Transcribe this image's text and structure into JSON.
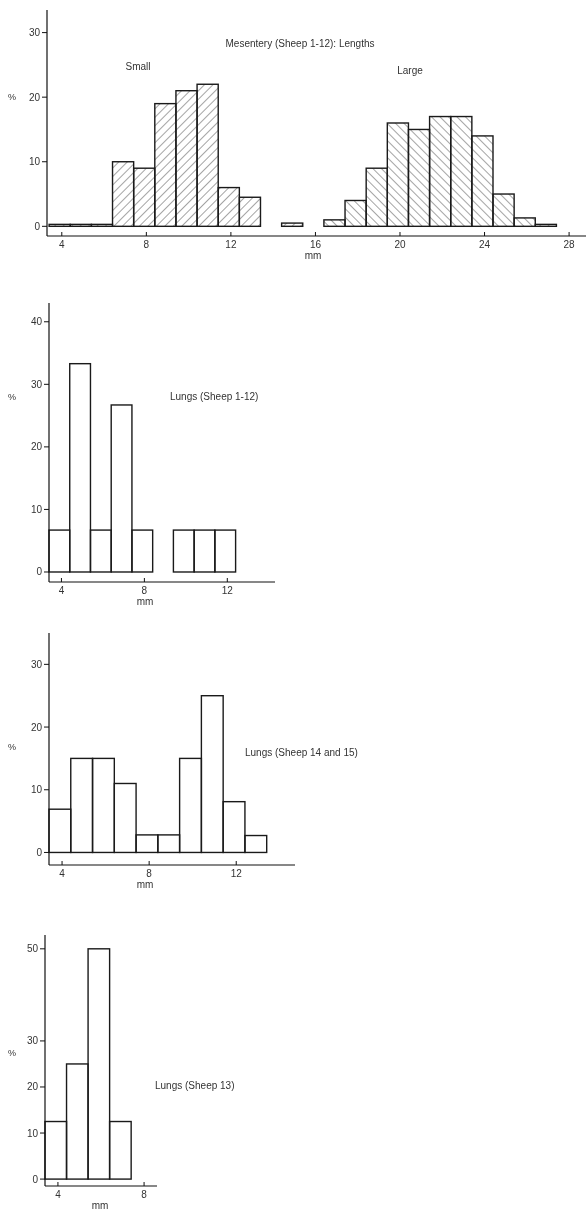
{
  "chart_data": [
    {
      "type": "histogram",
      "title": "Mesentery (Sheep 1-12): Lengths",
      "xlabel": "mm",
      "ylabel": "%",
      "bins": [
        3.4,
        4.4,
        5.4,
        6.4,
        7.4,
        8.4,
        9.4,
        10.4,
        11.4,
        12.4,
        13.4,
        14.4,
        15.4,
        16.4,
        17.4,
        18.4,
        19.4,
        20.4,
        21.4,
        22.4,
        23.4,
        24.4,
        25.4,
        26.4,
        27.4
      ],
      "series": [
        {
          "color": "#1a1a1a",
          "values": [
            0.3,
            0.3,
            0.3,
            10,
            9,
            19,
            21,
            22,
            6,
            4.5,
            0,
            0.5,
            null,
            null,
            null,
            null,
            null,
            null,
            null,
            null,
            null,
            null,
            null,
            null
          ]
        },
        {
          "color": "#1a1a1a",
          "values": [
            null,
            null,
            null,
            null,
            null,
            null,
            null,
            null,
            null,
            null,
            null,
            null,
            null,
            1,
            4,
            9,
            16,
            15,
            17,
            17,
            14,
            5,
            1.3,
            0.3
          ]
        }
      ],
      "xlim": [
        3.3,
        28.8
      ],
      "ylim": [
        -1.5,
        33.5
      ],
      "xticks": [
        4,
        8,
        12,
        16,
        20,
        24,
        28
      ],
      "yticks": [
        0,
        10,
        20,
        30
      ],
      "annotations": [
        "Small",
        "Large"
      ]
    },
    {
      "type": "histogram",
      "title": "Lungs (Sheep 1-12)",
      "xlabel": "mm",
      "ylabel": "%",
      "bins": [
        3.4,
        4.4,
        5.4,
        6.4,
        7.4,
        8.4,
        9.4,
        10.4,
        11.4,
        12.4
      ],
      "values": [
        6.7,
        33.3,
        6.7,
        26.7,
        6.7,
        0,
        6.7,
        6.7,
        6.7
      ],
      "color": "#1a1a1a",
      "xlim": [
        3.4,
        14.3
      ],
      "ylim": [
        -1.6,
        43
      ],
      "xticks": [
        4,
        8,
        12
      ],
      "yticks": [
        0,
        10,
        20,
        30,
        40
      ]
    },
    {
      "type": "histogram",
      "title": "Lungs (Sheep 14 and 15)",
      "xlabel": "mm",
      "ylabel": "%",
      "bins": [
        3.4,
        4.4,
        5.4,
        6.4,
        7.4,
        8.4,
        9.4,
        10.4,
        11.4,
        12.4,
        13.4
      ],
      "values": [
        6.9,
        15,
        15,
        11,
        2.8,
        2.8,
        15,
        25,
        8.1,
        2.7
      ],
      "color": "#1a1a1a",
      "xlim": [
        3.4,
        14.7
      ],
      "ylim": [
        -2,
        35
      ],
      "xticks": [
        4,
        8,
        12
      ],
      "yticks": [
        0,
        10,
        20,
        30
      ]
    },
    {
      "type": "histogram",
      "title": "Lungs (Sheep 13)",
      "xlabel": "mm",
      "ylabel": "%",
      "bins": [
        3.4,
        4.4,
        5.4,
        6.4,
        7.4
      ],
      "values": [
        12.5,
        25,
        50,
        12.5
      ],
      "color": "#1a1a1a",
      "xlim": [
        3.4,
        8.6
      ],
      "ylim": [
        -1.5,
        53
      ],
      "xticks": [
        4,
        8
      ],
      "yticks": [
        0,
        10,
        20,
        30,
        50
      ]
    }
  ]
}
